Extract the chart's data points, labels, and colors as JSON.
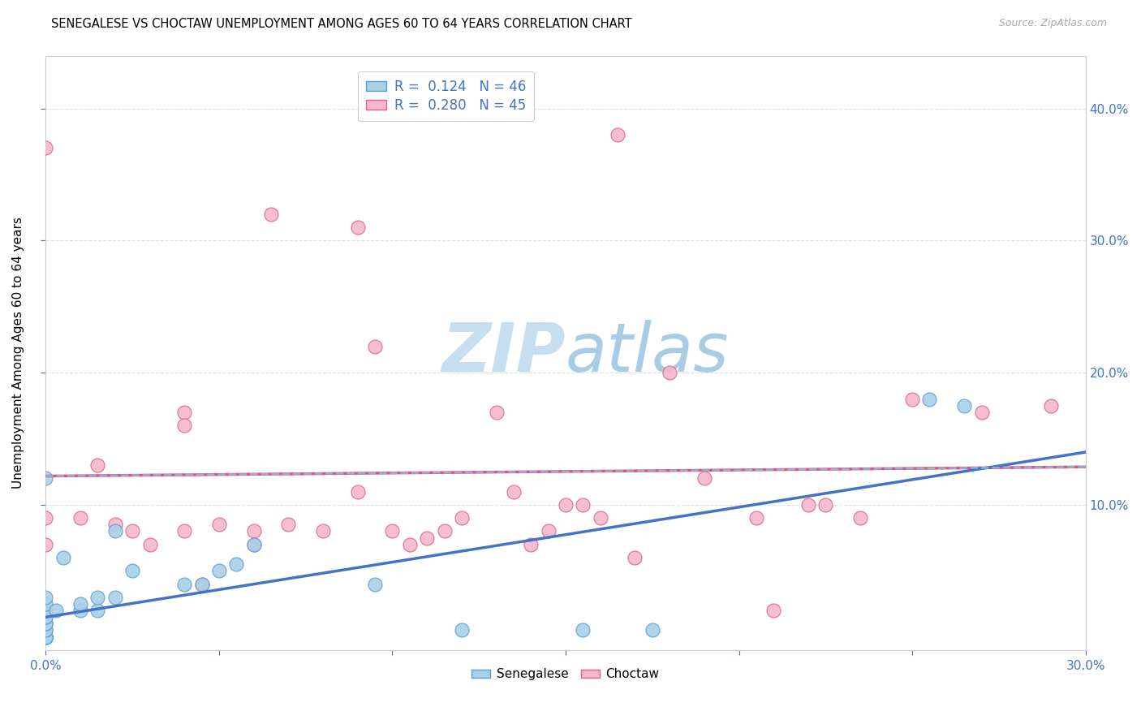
{
  "title": "SENEGALESE VS CHOCTAW UNEMPLOYMENT AMONG AGES 60 TO 64 YEARS CORRELATION CHART",
  "source": "Source: ZipAtlas.com",
  "ylabel": "Unemployment Among Ages 60 to 64 years",
  "xlim": [
    0.0,
    0.3
  ],
  "ylim": [
    -0.01,
    0.44
  ],
  "xticks": [
    0.0,
    0.05,
    0.1,
    0.15,
    0.2,
    0.25,
    0.3
  ],
  "yticks": [
    0.1,
    0.2,
    0.3,
    0.4
  ],
  "xticklabels_show": [
    "0.0%",
    "30.0%"
  ],
  "yticklabels": [
    "10.0%",
    "20.0%",
    "30.0%",
    "40.0%"
  ],
  "legend_line1": "R =  0.124   N = 46",
  "legend_line2": "R =  0.280   N = 45",
  "senegalese_fill": "#A8D0E8",
  "senegalese_edge": "#5B9BD5",
  "choctaw_fill": "#F4B8CC",
  "choctaw_edge": "#E06080",
  "senegalese_trend_color": "#4472C4",
  "choctaw_trend_color": "#E8507A",
  "dashed_trend_color": "#7FC4E8",
  "background_color": "#FFFFFF",
  "grid_color": "#DDDDDD",
  "tick_label_color": "#4472C4",
  "watermark_zip_color": "#C8E4F4",
  "watermark_atlas_color": "#B0D0E8",
  "senegalese_x": [
    0.0,
    0.0,
    0.0,
    0.0,
    0.0,
    0.0,
    0.0,
    0.0,
    0.0,
    0.0,
    0.0,
    0.0,
    0.0,
    0.0,
    0.0,
    0.0,
    0.0,
    0.0,
    0.0,
    0.0,
    0.0,
    0.0,
    0.0,
    0.0,
    0.0,
    0.0,
    0.003,
    0.005,
    0.01,
    0.01,
    0.015,
    0.015,
    0.02,
    0.02,
    0.025,
    0.04,
    0.045,
    0.05,
    0.055,
    0.06,
    0.095,
    0.12,
    0.155,
    0.175,
    0.255,
    0.265
  ],
  "senegalese_y": [
    0.0,
    0.0,
    0.0,
    0.0,
    0.0,
    0.0,
    0.0,
    0.0,
    0.0,
    0.0,
    0.0,
    0.0,
    0.0,
    0.0,
    0.005,
    0.005,
    0.01,
    0.01,
    0.01,
    0.015,
    0.015,
    0.02,
    0.02,
    0.025,
    0.03,
    0.12,
    0.02,
    0.06,
    0.02,
    0.025,
    0.02,
    0.03,
    0.03,
    0.08,
    0.05,
    0.04,
    0.04,
    0.05,
    0.055,
    0.07,
    0.04,
    0.005,
    0.005,
    0.005,
    0.18,
    0.175
  ],
  "choctaw_x": [
    0.0,
    0.0,
    0.0,
    0.01,
    0.015,
    0.02,
    0.025,
    0.03,
    0.04,
    0.04,
    0.04,
    0.045,
    0.05,
    0.06,
    0.06,
    0.065,
    0.07,
    0.08,
    0.09,
    0.09,
    0.095,
    0.1,
    0.105,
    0.11,
    0.115,
    0.12,
    0.13,
    0.135,
    0.14,
    0.145,
    0.15,
    0.155,
    0.16,
    0.165,
    0.17,
    0.18,
    0.19,
    0.205,
    0.21,
    0.22,
    0.225,
    0.235,
    0.25,
    0.27,
    0.29
  ],
  "choctaw_y": [
    0.09,
    0.07,
    0.37,
    0.09,
    0.13,
    0.085,
    0.08,
    0.07,
    0.17,
    0.16,
    0.08,
    0.04,
    0.085,
    0.08,
    0.07,
    0.32,
    0.085,
    0.08,
    0.31,
    0.11,
    0.22,
    0.08,
    0.07,
    0.075,
    0.08,
    0.09,
    0.17,
    0.11,
    0.07,
    0.08,
    0.1,
    0.1,
    0.09,
    0.38,
    0.06,
    0.2,
    0.12,
    0.09,
    0.02,
    0.1,
    0.1,
    0.09,
    0.18,
    0.17,
    0.175
  ]
}
